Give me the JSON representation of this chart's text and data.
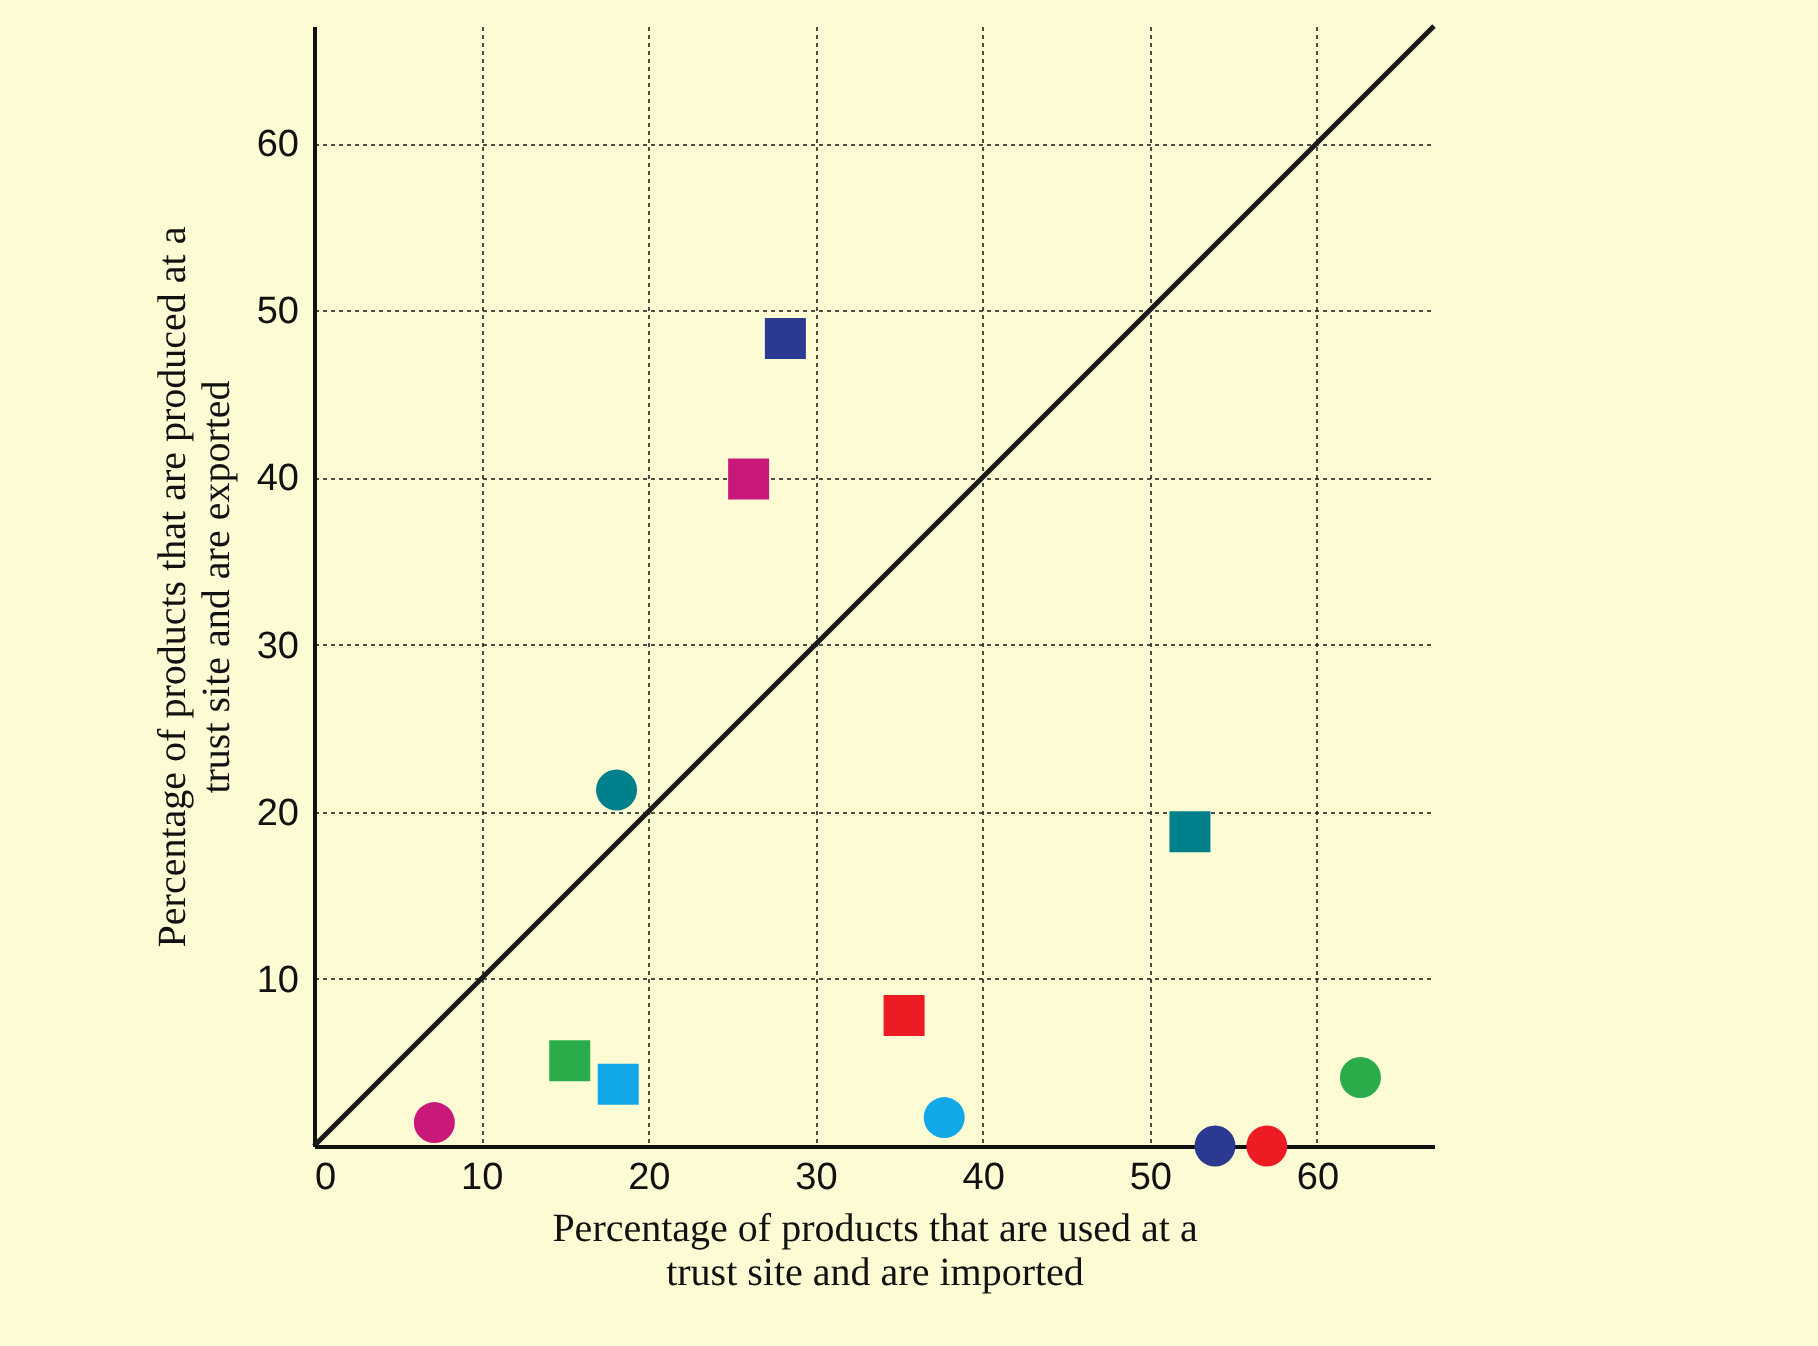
{
  "chart_data": {
    "type": "scatter",
    "xlabel": "Percentage of products that are used at a\ntrust site and are imported",
    "ylabel": "Percentage of products that are produced at a\ntrust site and are exported",
    "xlim": [
      0,
      67
    ],
    "ylim": [
      0,
      67
    ],
    "xticks": [
      0,
      10,
      20,
      30,
      40,
      50,
      60
    ],
    "yticks": [
      10,
      20,
      30,
      40,
      50,
      60
    ],
    "grid": true,
    "series": [
      {
        "type": "line",
        "x": [
          0,
          67
        ],
        "values": [
          0,
          67
        ],
        "color": "#1a1a1a",
        "marker": "none",
        "line_style": "solid"
      },
      {
        "marker": "circle",
        "x": [
          7.2,
          18.1,
          37.7,
          53.9,
          57.0,
          62.6
        ],
        "values": [
          1.4,
          21.3,
          1.7,
          0,
          0,
          4.1
        ],
        "colors": [
          "#c8197a",
          "#00808a",
          "#12a8e8",
          "#2b3990",
          "#ed1c24",
          "#2aac4a"
        ]
      },
      {
        "marker": "square",
        "x": [
          15.3,
          18.2,
          26.0,
          28.2,
          35.3,
          52.4
        ],
        "values": [
          5.1,
          3.7,
          39.9,
          48.3,
          7.8,
          18.8
        ],
        "colors": [
          "#2aac4a",
          "#12a8e8",
          "#c8197a",
          "#2b3990",
          "#ed1c24",
          "#00808a"
        ]
      }
    ]
  }
}
